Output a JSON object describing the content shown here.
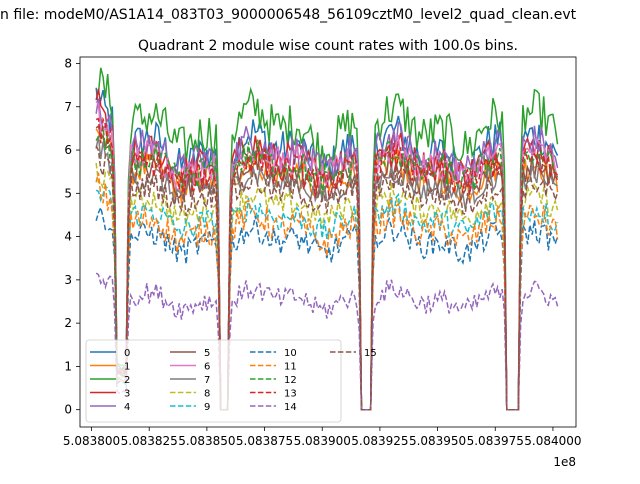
{
  "figure": {
    "suptitle": "n file: modeM0/AS1A14_083T03_9000006548_56109cztM0_level2_quad_clean.evt",
    "title": "Quadrant 2 module wise count rates with 100.0s bins.",
    "x_offset_label": "1e8"
  },
  "chart_data": {
    "type": "line",
    "title": "Quadrant 2 module wise count rates with 100.0s bins.",
    "xlabel": "",
    "ylabel": "",
    "xlim": [
      5.083795,
      5.08401
    ],
    "ylim": [
      -0.4,
      8.15
    ],
    "x_ticks": [
      5.0838,
      5.083825,
      5.08385,
      5.083875,
      5.0839,
      5.083925,
      5.08395,
      5.083975,
      5.084
    ],
    "x_tick_labels": [
      "5.083800",
      "5.083825",
      "5.083850",
      "5.083875",
      "5.083900",
      "5.083925",
      "5.083950",
      "5.083975",
      "5.084000"
    ],
    "y_ticks": [
      0,
      1,
      2,
      3,
      4,
      5,
      6,
      7,
      8
    ],
    "y_tick_labels": [
      "0",
      "1",
      "2",
      "3",
      "4",
      "5",
      "6",
      "7",
      "8"
    ],
    "x_start": 5.083802,
    "bin": 1e-06,
    "n_points": 201,
    "dips": [
      {
        "from": 5.083811,
        "to": 5.083815,
        "min_scale": 0.15
      },
      {
        "from": 5.083856,
        "to": 5.083859,
        "min_scale": 0.0
      },
      {
        "from": 5.083917,
        "to": 5.083921,
        "min_scale": 0.0
      },
      {
        "from": 5.08398,
        "to": 5.083985,
        "min_scale": 0.0
      }
    ],
    "legend": {
      "location": "lower-left",
      "columns": 4
    },
    "series": [
      {
        "name": "0",
        "color": "#1f77b4",
        "dash": "solid",
        "base": 6.0,
        "start": 7.3,
        "amp": 0.45
      },
      {
        "name": "1",
        "color": "#ff7f0e",
        "dash": "solid",
        "base": 5.4,
        "start": 6.6,
        "amp": 0.35
      },
      {
        "name": "2",
        "color": "#2ca02c",
        "dash": "solid",
        "base": 6.5,
        "start": 7.7,
        "amp": 0.5
      },
      {
        "name": "3",
        "color": "#d62728",
        "dash": "solid",
        "base": 5.8,
        "start": 7.3,
        "amp": 0.35
      },
      {
        "name": "4",
        "color": "#9467bd",
        "dash": "solid",
        "base": 5.9,
        "start": 7.0,
        "amp": 0.4
      },
      {
        "name": "5",
        "color": "#8c564b",
        "dash": "solid",
        "base": 5.4,
        "start": 6.5,
        "amp": 0.3
      },
      {
        "name": "6",
        "color": "#e377c2",
        "dash": "solid",
        "base": 5.7,
        "start": 6.9,
        "amp": 0.35
      },
      {
        "name": "7",
        "color": "#7f7f7f",
        "dash": "solid",
        "base": 5.2,
        "start": 6.2,
        "amp": 0.3
      },
      {
        "name": "8",
        "color": "#bcbd22",
        "dash": "dashed",
        "base": 4.7,
        "start": 5.6,
        "amp": 0.3
      },
      {
        "name": "9",
        "color": "#17becf",
        "dash": "dashed",
        "base": 4.4,
        "start": 5.1,
        "amp": 0.3
      },
      {
        "name": "10",
        "color": "#1f77b4",
        "dash": "dashed",
        "base": 3.9,
        "start": 4.6,
        "amp": 0.3
      },
      {
        "name": "11",
        "color": "#ff7f0e",
        "dash": "dashed",
        "base": 4.2,
        "start": 5.3,
        "amp": 0.35
      },
      {
        "name": "12",
        "color": "#2ca02c",
        "dash": "dashed",
        "base": 5.6,
        "start": 6.4,
        "amp": 0.35
      },
      {
        "name": "13",
        "color": "#d62728",
        "dash": "dashed",
        "base": 5.5,
        "start": 6.8,
        "amp": 0.35
      },
      {
        "name": "14",
        "color": "#9467bd",
        "dash": "dashed",
        "base": 2.55,
        "start": 3.2,
        "amp": 0.25
      },
      {
        "name": "15",
        "color": "#8c564b",
        "dash": "dashed",
        "base": 5.0,
        "start": 6.0,
        "amp": 0.3
      }
    ]
  }
}
